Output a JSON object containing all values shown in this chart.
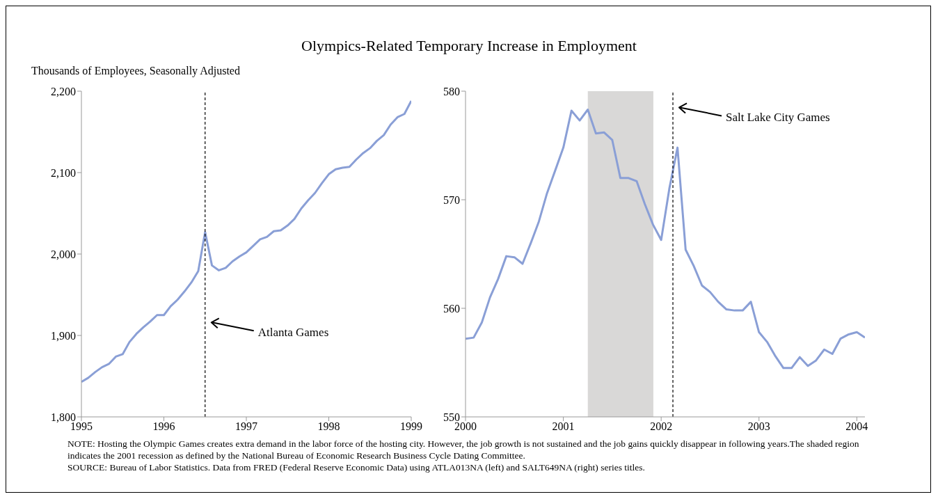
{
  "chart_data": [
    {
      "type": "line",
      "title": "Olympics-Related Temporary Increase in Employment",
      "ylabel": "Thousands of Employees, Seasonally Adjusted",
      "x": [
        1995.0,
        1995.083,
        1995.167,
        1995.25,
        1995.333,
        1995.417,
        1995.5,
        1995.583,
        1995.667,
        1995.75,
        1995.833,
        1995.917,
        1996.0,
        1996.083,
        1996.167,
        1996.25,
        1996.333,
        1996.417,
        1996.5,
        1996.583,
        1996.667,
        1996.75,
        1996.833,
        1996.917,
        1997.0,
        1997.083,
        1997.167,
        1997.25,
        1997.333,
        1997.417,
        1997.5,
        1997.583,
        1997.667,
        1997.75,
        1997.833,
        1997.917,
        1998.0,
        1998.083,
        1998.167,
        1998.25,
        1998.333,
        1998.417,
        1998.5,
        1998.583,
        1998.667,
        1998.75,
        1998.833,
        1998.917,
        1999.0
      ],
      "series": [
        {
          "color": "#8a9fd6",
          "values": [
            1843,
            1848,
            1855,
            1861,
            1865,
            1874,
            1877,
            1892,
            1902,
            1910,
            1917,
            1925,
            1925,
            1936,
            1944,
            1954,
            1965,
            1979,
            2027,
            1986,
            1980,
            1983,
            1991,
            1997,
            2002,
            2010,
            2018,
            2021,
            2028,
            2029,
            2035,
            2043,
            2056,
            2066,
            2075,
            2087,
            2098,
            2104,
            2106,
            2107,
            2116,
            2124,
            2130,
            2139,
            2146,
            2159,
            2168,
            2172,
            2188
          ]
        }
      ],
      "xlim": [
        1995,
        1999
      ],
      "xticks": [
        1995,
        1996,
        1997,
        1998,
        1999
      ],
      "ylim": [
        1800,
        2200
      ],
      "yticks": [
        {
          "value": 1800,
          "label": "1,800"
        },
        {
          "value": 1900,
          "label": "1,900"
        },
        {
          "value": 2000,
          "label": "2,000"
        },
        {
          "value": 2100,
          "label": "2,100"
        },
        {
          "value": 2200,
          "label": "2,200"
        }
      ],
      "ref_lines": [
        {
          "axis": "x",
          "value": 1996.5,
          "line_style": "dashed",
          "color": "#000000",
          "label": "Atlanta Games"
        }
      ],
      "annotations": [
        "NOTE: Hosting the Olympic Games creates extra demand in the labor force of the hosting city. However, the job growth is not sustained and the job gains quickly disappear in following years.The shaded region indicates the 2001 recession as defined by the National Bureau of Economic Research Business Cycle Dating Committee.",
        "SOURCE: Bureau of Labor Statistics. Data from FRED (Federal Reserve Economic Data) using ATLA013NA (left) and SALT649NA (right) series titles."
      ]
    },
    {
      "type": "line",
      "x": [
        2000.0,
        2000.083,
        2000.167,
        2000.25,
        2000.333,
        2000.417,
        2000.5,
        2000.583,
        2000.667,
        2000.75,
        2000.833,
        2000.917,
        2001.0,
        2001.083,
        2001.167,
        2001.25,
        2001.333,
        2001.417,
        2001.5,
        2001.583,
        2001.667,
        2001.75,
        2001.833,
        2001.917,
        2002.0,
        2002.083,
        2002.167,
        2002.25,
        2002.333,
        2002.417,
        2002.5,
        2002.583,
        2002.667,
        2002.75,
        2002.833,
        2002.917,
        2003.0,
        2003.083,
        2003.167,
        2003.25,
        2003.333,
        2003.417,
        2003.5,
        2003.583,
        2003.667,
        2003.75,
        2003.833,
        2003.917,
        2004.0,
        2004.083
      ],
      "series": [
        {
          "color": "#8a9fd6",
          "values": [
            557.2,
            557.3,
            558.7,
            561.0,
            562.7,
            564.8,
            564.7,
            564.1,
            566.0,
            568.0,
            570.6,
            572.7,
            574.8,
            578.2,
            577.3,
            578.3,
            576.1,
            576.2,
            575.5,
            572.0,
            572.0,
            571.7,
            569.6,
            567.7,
            566.3,
            571.0,
            574.8,
            565.4,
            563.9,
            562.1,
            561.5,
            560.6,
            559.9,
            559.8,
            559.8,
            560.6,
            557.8,
            556.9,
            555.6,
            554.5,
            554.5,
            555.5,
            554.7,
            555.2,
            556.2,
            555.8,
            557.2,
            557.6,
            557.8,
            557.3
          ]
        }
      ],
      "xlim": [
        2000,
        2004.083
      ],
      "xticks": [
        2000,
        2001,
        2002,
        2003,
        2004
      ],
      "ylim": [
        550,
        580
      ],
      "yticks": [
        550,
        560,
        570,
        580
      ],
      "bands": [
        {
          "axis": "x",
          "from": 2001.25,
          "to": 2001.92,
          "color": "#d9d8d7"
        }
      ],
      "ref_lines": [
        {
          "axis": "x",
          "value": 2002.12,
          "line_style": "dashed",
          "color": "#000000",
          "label": "Salt Lake City Games"
        }
      ]
    }
  ]
}
